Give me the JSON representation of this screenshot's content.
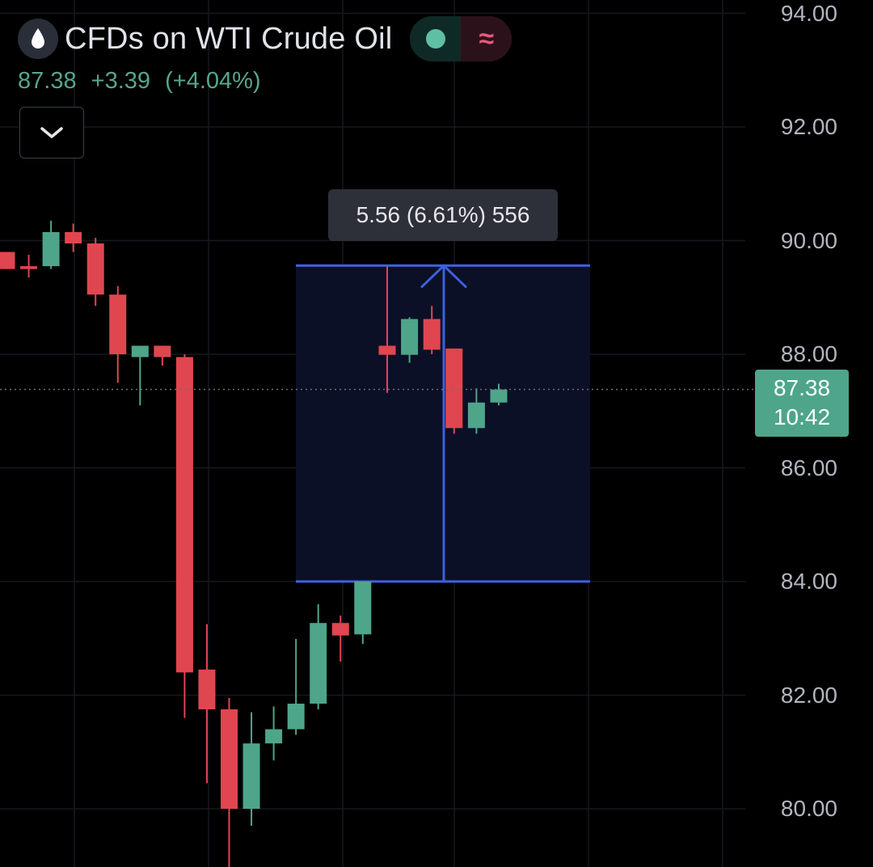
{
  "header": {
    "symbol_icon": "oil-drop-icon",
    "title": "CFDs on WTI Crude Oil",
    "status": {
      "market_open_icon": "market-open-dot-icon",
      "delayed_icon": "approx-wave-icon"
    }
  },
  "quote": {
    "last": "87.38",
    "change": "+3.39",
    "change_pct": "(+4.04%)"
  },
  "collapse_button": {
    "icon": "chevron-down-icon"
  },
  "price_axis": {
    "labels": [
      "94.00",
      "92.00",
      "90.00",
      "88.00",
      "86.00",
      "84.00",
      "82.00",
      "80.00"
    ]
  },
  "price_tag": {
    "price": "87.38",
    "countdown": "10:42"
  },
  "measure": {
    "label": "5.56 (6.61%) 556",
    "from": 84.0,
    "to": 89.56
  },
  "colors": {
    "up": "#4ea58a",
    "down": "#e0464f",
    "measure": "#3d5fe0",
    "background": "#000000"
  },
  "chart_data": {
    "type": "candlestick",
    "ylim": [
      79.0,
      94.2
    ],
    "y_ticks": [
      80,
      82,
      84,
      86,
      88,
      90,
      92,
      94
    ],
    "current_price": 87.38,
    "candles": [
      {
        "o": 89.8,
        "h": 89.8,
        "l": 89.5,
        "c": 89.5
      },
      {
        "o": 89.55,
        "h": 89.75,
        "l": 89.35,
        "c": 89.5
      },
      {
        "o": 89.55,
        "h": 90.35,
        "l": 89.5,
        "c": 90.15
      },
      {
        "o": 90.15,
        "h": 90.3,
        "l": 89.8,
        "c": 89.95
      },
      {
        "o": 89.95,
        "h": 90.05,
        "l": 88.85,
        "c": 89.05
      },
      {
        "o": 89.05,
        "h": 89.2,
        "l": 87.5,
        "c": 88.0
      },
      {
        "o": 87.95,
        "h": 88.1,
        "l": 87.1,
        "c": 88.15
      },
      {
        "o": 88.15,
        "h": 88.05,
        "l": 87.8,
        "c": 87.95
      },
      {
        "o": 87.95,
        "h": 88.0,
        "l": 81.6,
        "c": 82.4
      },
      {
        "o": 82.45,
        "h": 83.25,
        "l": 80.45,
        "c": 81.75
      },
      {
        "o": 81.75,
        "h": 81.95,
        "l": 78.9,
        "c": 80.0
      },
      {
        "o": 80.0,
        "h": 81.7,
        "l": 79.7,
        "c": 81.15
      },
      {
        "o": 81.15,
        "h": 81.8,
        "l": 80.85,
        "c": 81.4
      },
      {
        "o": 81.4,
        "h": 82.99,
        "l": 81.3,
        "c": 81.85
      },
      {
        "o": 81.85,
        "h": 83.6,
        "l": 81.75,
        "c": 83.27
      },
      {
        "o": 83.27,
        "h": 83.4,
        "l": 82.59,
        "c": 83.05
      },
      {
        "o": 83.07,
        "h": 84.0,
        "l": 82.9,
        "c": 84.0
      },
      {
        "o": 88.15,
        "h": 89.55,
        "l": 87.32,
        "c": 87.99
      },
      {
        "o": 87.99,
        "h": 88.65,
        "l": 87.85,
        "c": 88.62
      },
      {
        "o": 88.62,
        "h": 88.85,
        "l": 88.0,
        "c": 88.08
      },
      {
        "o": 88.1,
        "h": 88.1,
        "l": 86.6,
        "c": 86.7
      },
      {
        "o": 86.7,
        "h": 87.4,
        "l": 86.6,
        "c": 87.15
      },
      {
        "o": 87.15,
        "h": 87.48,
        "l": 87.1,
        "c": 87.38
      }
    ]
  }
}
